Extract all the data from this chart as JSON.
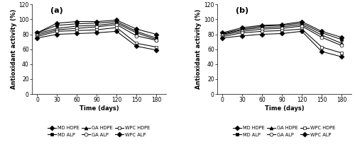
{
  "x": [
    0,
    30,
    60,
    90,
    120,
    150,
    180
  ],
  "panel_a": {
    "label": "(a)",
    "series": {
      "MD HDPE": [
        82,
        95,
        97,
        97,
        99,
        87,
        80
      ],
      "MD ALP": [
        82,
        92,
        94,
        95,
        97,
        84,
        75
      ],
      "GA HDPE": [
        81,
        88,
        91,
        92,
        95,
        82,
        73
      ],
      "GA ALP": [
        79,
        86,
        88,
        90,
        93,
        78,
        72
      ],
      "WPC HDPE": [
        77,
        84,
        85,
        86,
        89,
        68,
        63
      ],
      "WPC ALP": [
        75,
        80,
        81,
        82,
        84,
        64,
        59
      ]
    }
  },
  "panel_b": {
    "label": "(b)",
    "series": {
      "MD HDPE": [
        82,
        89,
        92,
        93,
        97,
        84,
        76
      ],
      "MD ALP": [
        81,
        87,
        91,
        92,
        95,
        82,
        73
      ],
      "GA HDPE": [
        80,
        86,
        89,
        90,
        93,
        79,
        68
      ],
      "GA ALP": [
        79,
        84,
        87,
        88,
        91,
        76,
        65
      ],
      "WPC HDPE": [
        77,
        82,
        84,
        85,
        87,
        63,
        55
      ],
      "WPC ALP": [
        75,
        78,
        80,
        81,
        84,
        57,
        50
      ]
    }
  },
  "markers": {
    "MD HDPE": {
      "marker": "D",
      "markersize": 3.5,
      "fillstyle": "full"
    },
    "MD ALP": {
      "marker": "s",
      "markersize": 3.5,
      "fillstyle": "full"
    },
    "GA HDPE": {
      "marker": "^",
      "markersize": 3.5,
      "fillstyle": "full"
    },
    "GA ALP": {
      "marker": "o",
      "markersize": 3.5,
      "fillstyle": "none"
    },
    "WPC HDPE": {
      "marker": "s",
      "markersize": 3.5,
      "fillstyle": "none"
    },
    "WPC ALP": {
      "marker": "D",
      "markersize": 3.5,
      "fillstyle": "full"
    }
  },
  "legend_order_a": [
    "MD HDPE",
    "MD ALP",
    "GA HDPE",
    "GA ALP",
    "WPC HDPE",
    "WPC ALP"
  ],
  "legend_order_b": [
    "MD HDPE",
    "MD ALP",
    "GA HDPE",
    "GA ALP",
    "WPC HDPE",
    "WPC ALP"
  ],
  "ylabel": "Antioxidant activity (%)",
  "xlabel": "Time (days)",
  "ylim": [
    0,
    120
  ],
  "yticks": [
    0,
    20,
    40,
    60,
    80,
    100,
    120
  ],
  "xticks": [
    0,
    30,
    60,
    90,
    120,
    150,
    180
  ],
  "fontsize_axis_label": 6,
  "fontsize_tick": 5.5,
  "fontsize_legend": 4.8,
  "fontsize_panel_label": 8
}
